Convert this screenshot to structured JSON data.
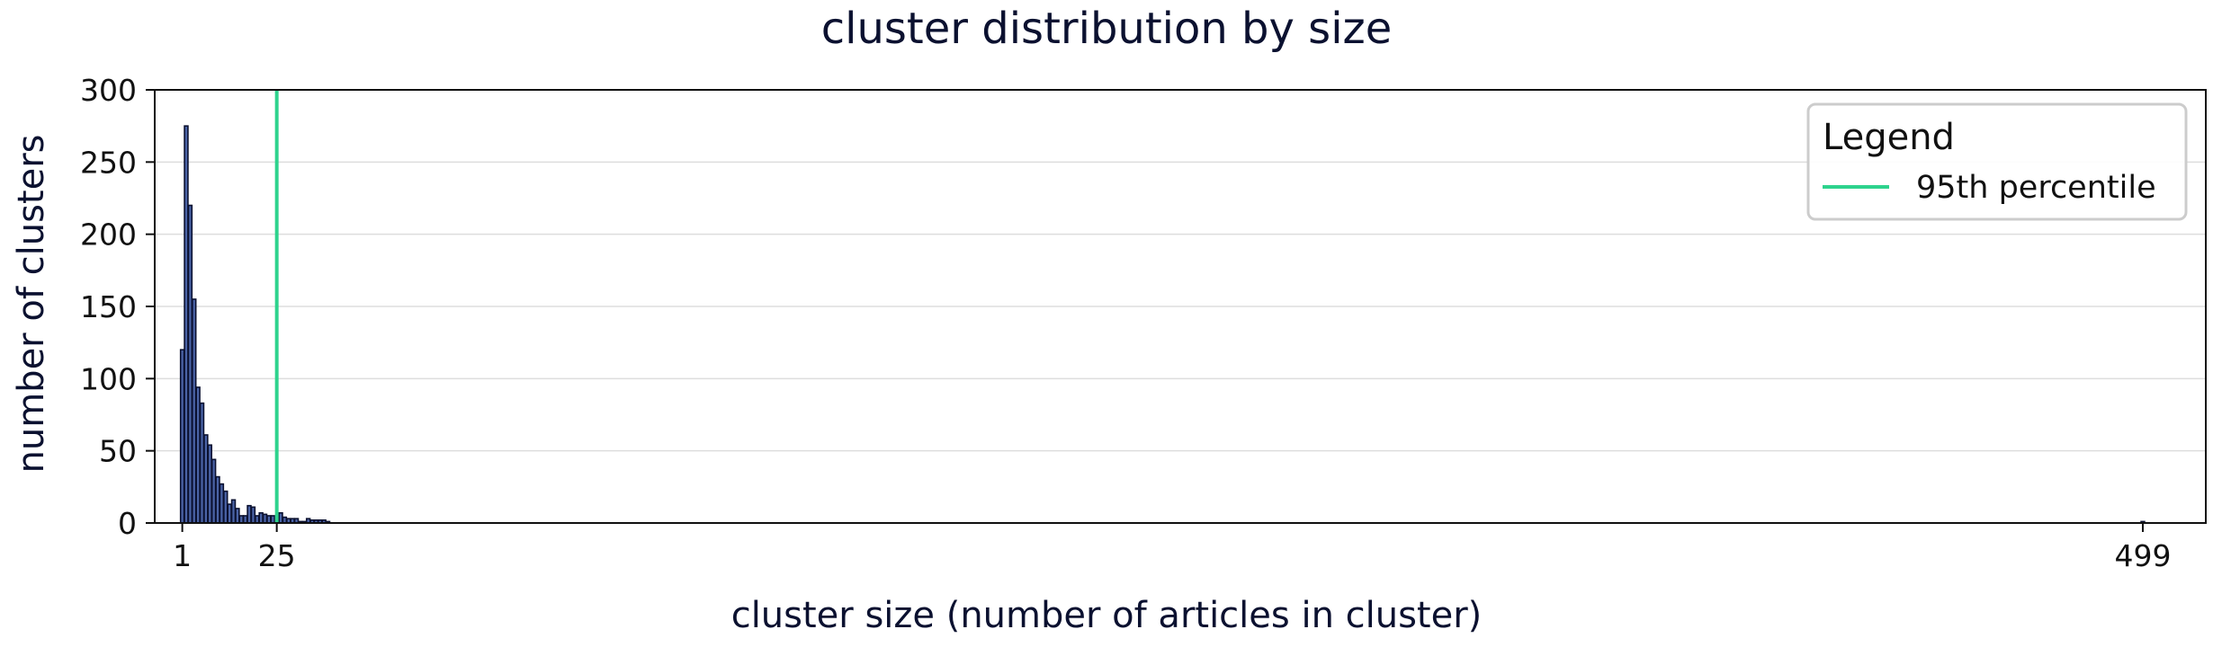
{
  "chart_data": {
    "type": "bar",
    "title": "cluster distribution by size",
    "xlabel": "cluster size (number of articles in cluster)",
    "ylabel": "number of clusters",
    "xlim": [
      -6,
      515
    ],
    "ylim": [
      0,
      300
    ],
    "x_ticks": [
      1,
      25,
      499
    ],
    "y_ticks": [
      0,
      50,
      100,
      150,
      200,
      250,
      300
    ],
    "grid": "horizontal",
    "bar_color": "#4a63a6",
    "bar_edge_color": "#0b1130",
    "x": [
      1,
      2,
      3,
      4,
      5,
      6,
      7,
      8,
      9,
      10,
      11,
      12,
      13,
      14,
      15,
      16,
      17,
      18,
      19,
      20,
      21,
      22,
      23,
      24,
      25,
      26,
      27,
      28,
      29,
      30,
      31,
      32,
      33,
      34,
      35,
      36,
      37,
      38,
      499
    ],
    "values": [
      120,
      275,
      220,
      155,
      94,
      83,
      61,
      54,
      44,
      32,
      27,
      22,
      13,
      16,
      10,
      5,
      5,
      12,
      11,
      5,
      7,
      6,
      5,
      5,
      4,
      7,
      4,
      3,
      3,
      3,
      1,
      1,
      3,
      2,
      2,
      2,
      2,
      1,
      1
    ],
    "reference_lines": [
      {
        "name": "95th percentile",
        "x": 25,
        "color": "#2ed38d"
      }
    ],
    "legend": {
      "title": "Legend",
      "position": "top-right",
      "entries": [
        "95th percentile"
      ]
    }
  }
}
